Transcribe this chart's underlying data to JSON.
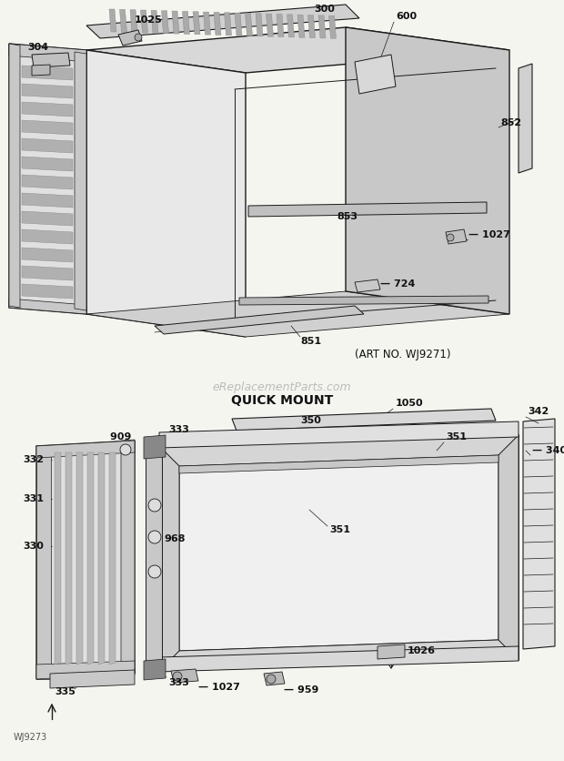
{
  "bg_color": "#f5f5f0",
  "line_color": "#1a1a1a",
  "text_color": "#111111",
  "watermark": "eReplacementParts.com",
  "watermark_color": "#bbbbbb",
  "quick_mount_label": "QUICK MOUNT",
  "art_no": "(ART NO. WJ9271)",
  "wj_label": "WJ9273",
  "figsize": [
    6.2,
    8.36
  ],
  "dpi": 100
}
